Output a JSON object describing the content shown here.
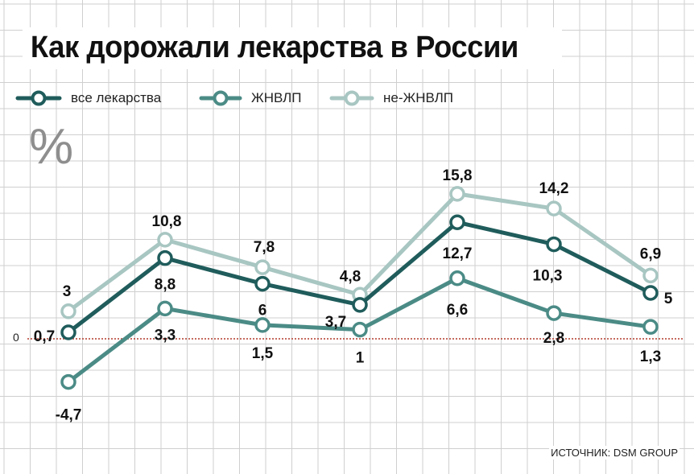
{
  "title": "Как дорожали лекарства в России",
  "unit": "%",
  "source": "ИСТОЧНИК: DSM GROUP",
  "colors": {
    "all": "#1f5c5b",
    "zhnvlp": "#4b8b86",
    "ne_zhnvlp": "#a8c6c2",
    "grid": "#cfcfcf",
    "zero_line": "#b23a2b"
  },
  "chart_data": {
    "type": "line",
    "title": "Как дорожали лекарства в России",
    "xlabel": "",
    "ylabel": "%",
    "x": [
      1,
      2,
      3,
      4,
      5,
      6,
      7
    ],
    "ylim": [
      -9,
      19
    ],
    "grid": true,
    "legend_position": "top-left",
    "zero_tick_label": "0",
    "series": [
      {
        "name": "все лекарства",
        "color": "#1f5c5b",
        "values": [
          0.7,
          8.8,
          6,
          3.7,
          12.7,
          10.3,
          5
        ],
        "labels": [
          "0,7",
          "8,8",
          "6",
          "3,7",
          "12,7",
          "10,3",
          "5"
        ]
      },
      {
        "name": "ЖНВЛП",
        "color": "#4b8b86",
        "values": [
          -4.7,
          3.3,
          1.5,
          1,
          6.6,
          2.8,
          1.3
        ],
        "labels": [
          "-4,7",
          "3,3",
          "1,5",
          "1",
          "6,6",
          "2,8",
          "1,3"
        ]
      },
      {
        "name": "не-ЖНВЛП",
        "color": "#a8c6c2",
        "values": [
          3,
          10.8,
          7.8,
          4.8,
          15.8,
          14.2,
          6.9
        ],
        "labels": [
          "3",
          "10,8",
          "7,8",
          "4,8",
          "15,8",
          "14,2",
          "6,9"
        ]
      }
    ]
  }
}
